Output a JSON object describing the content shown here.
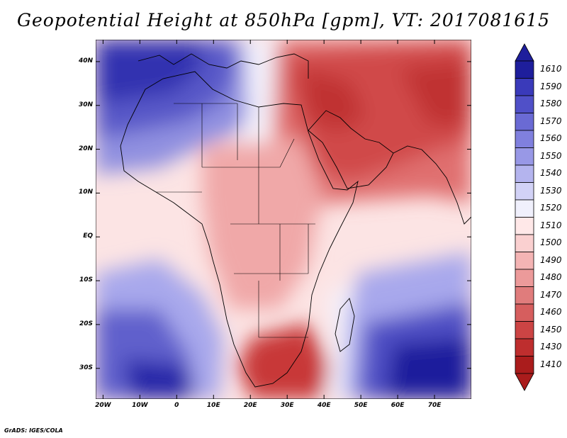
{
  "title": "Geopotential Height at 850hPa [gpm], VT: 2017081615",
  "credit": "GrADS: IGES/COLA",
  "map": {
    "lon_range": [
      -22,
      80
    ],
    "lat_range": [
      -37,
      45
    ],
    "lat_ticks": [
      {
        "value": 40,
        "label": "40N"
      },
      {
        "value": 30,
        "label": "30N"
      },
      {
        "value": 20,
        "label": "20N"
      },
      {
        "value": 10,
        "label": "10N"
      },
      {
        "value": 0,
        "label": "EQ"
      },
      {
        "value": -10,
        "label": "10S"
      },
      {
        "value": -20,
        "label": "20S"
      },
      {
        "value": -30,
        "label": "30S"
      }
    ],
    "lon_ticks": [
      {
        "value": -20,
        "label": "20W"
      },
      {
        "value": -10,
        "label": "10W"
      },
      {
        "value": 0,
        "label": "0"
      },
      {
        "value": 10,
        "label": "10E"
      },
      {
        "value": 20,
        "label": "20E"
      },
      {
        "value": 30,
        "label": "30E"
      },
      {
        "value": 40,
        "label": "40E"
      },
      {
        "value": 50,
        "label": "50E"
      },
      {
        "value": 60,
        "label": "60E"
      },
      {
        "value": 70,
        "label": "70E"
      }
    ]
  },
  "colorbar": {
    "levels": [
      "1610",
      "1590",
      "1580",
      "1570",
      "1560",
      "1550",
      "1540",
      "1530",
      "1520",
      "1510",
      "1500",
      "1490",
      "1480",
      "1470",
      "1460",
      "1450",
      "1430",
      "1410"
    ],
    "colors": [
      "#1e1e9c",
      "#3a3aba",
      "#5050c8",
      "#6a6ad4",
      "#8080de",
      "#9898e6",
      "#b4b4ee",
      "#d2d2f6",
      "#f0f0fc",
      "#ffe8e8",
      "#fad0d0",
      "#f4b4b4",
      "#ec9a9a",
      "#e07c7c",
      "#d65e5e",
      "#cc4444",
      "#be2e2e",
      "#aa1c1c"
    ]
  }
}
